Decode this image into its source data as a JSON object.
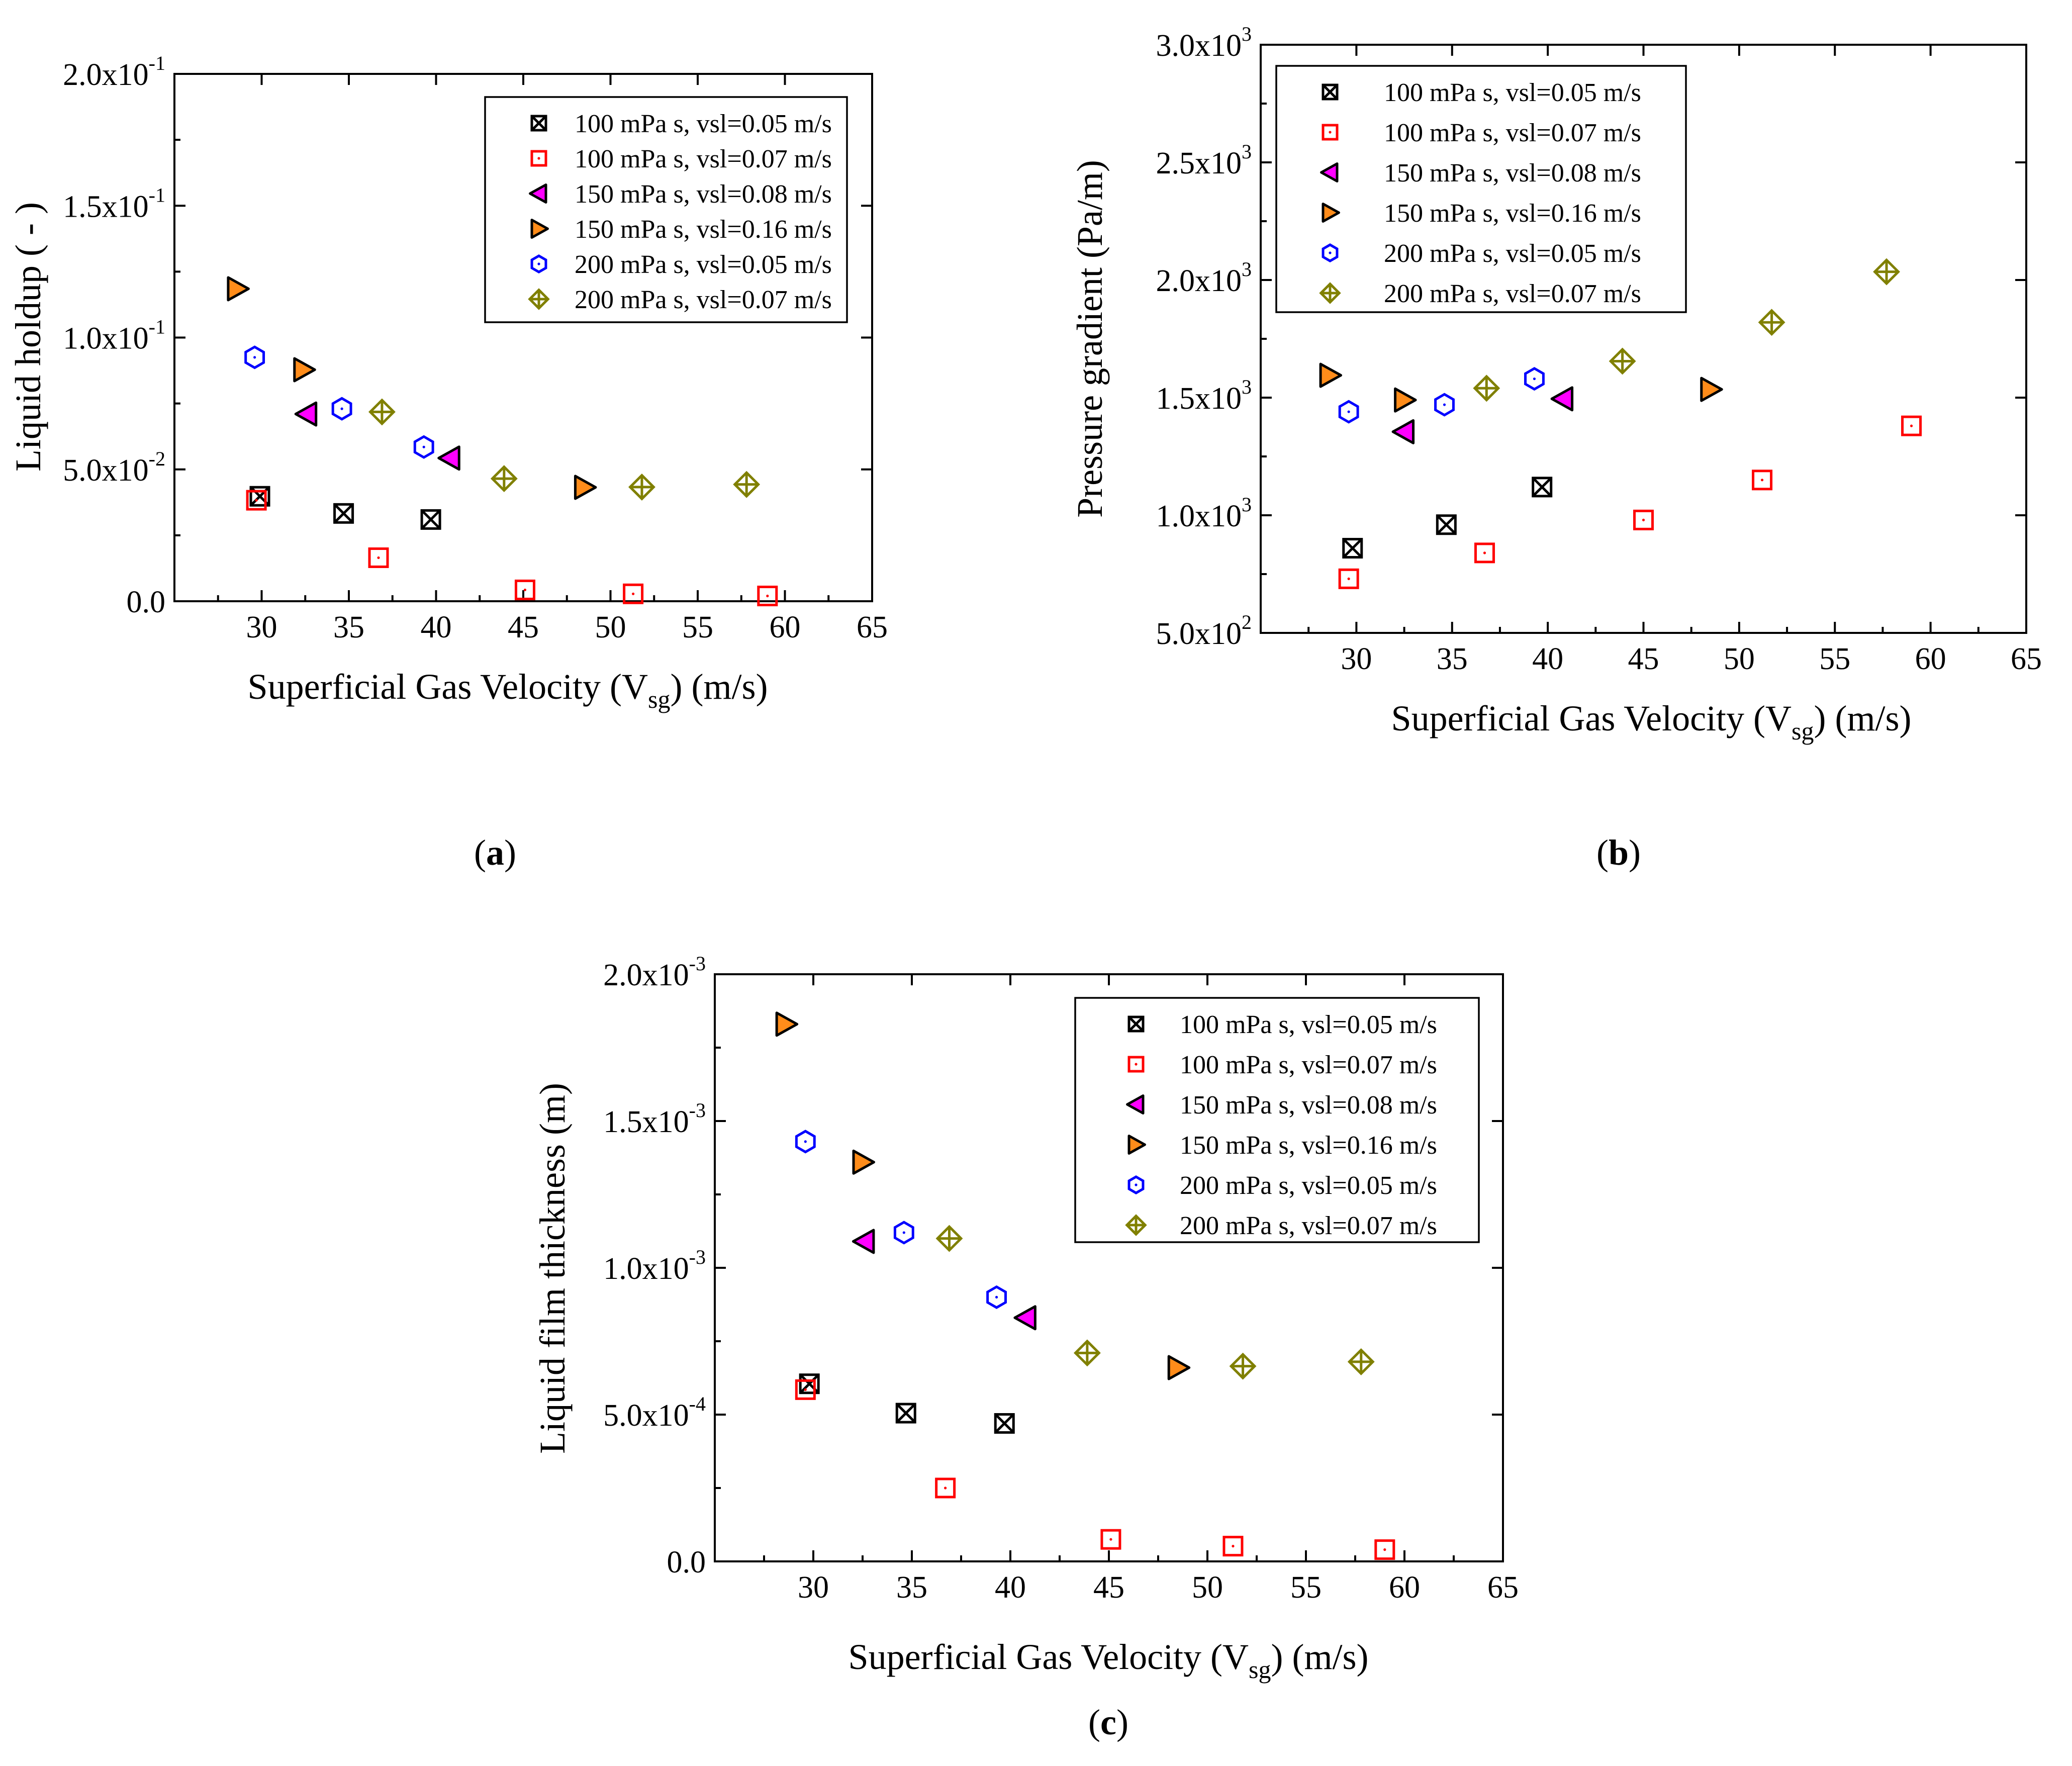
{
  "figure": {
    "panel_labels": [
      "(a)",
      "(b)",
      "(c)"
    ]
  },
  "series_styles": [
    {
      "marker": "boxed-x",
      "stroke": "#000000",
      "fill": "none"
    },
    {
      "marker": "dotted-square",
      "stroke": "#ff0000",
      "fill": "none"
    },
    {
      "marker": "left-triangle",
      "stroke": "#000000",
      "fill": "#ff00ff"
    },
    {
      "marker": "right-triangle",
      "stroke": "#000000",
      "fill": "#ff8c1a"
    },
    {
      "marker": "hexagon",
      "stroke": "#0000ff",
      "fill": "none"
    },
    {
      "marker": "circled-plus-diamond",
      "stroke": "#808000",
      "fill": "none"
    }
  ],
  "chart_data": [
    {
      "id": "a",
      "type": "scatter",
      "panel_label": "(a)",
      "title": "",
      "xlabel": "Superficial Gas Velocity (V",
      "xlabel_sub": "sg",
      "xlabel_suffix": ") (m/s)",
      "ylabel": "Liquid holdup ( - )",
      "xlim": [
        25,
        65
      ],
      "ylim": [
        0,
        0.2
      ],
      "xticks": [
        30,
        35,
        40,
        45,
        50,
        55,
        60,
        65
      ],
      "yticks": [
        {
          "value": 0,
          "mant": "0.0",
          "exp": ""
        },
        {
          "value": 0.05,
          "mant": "5.0x10",
          "exp": "-2"
        },
        {
          "value": 0.1,
          "mant": "1.0x10",
          "exp": "-1"
        },
        {
          "value": 0.15,
          "mant": "1.5x10",
          "exp": "-1"
        },
        {
          "value": 0.2,
          "mant": "2.0x10",
          "exp": "-1"
        }
      ],
      "legend_position": "top-right",
      "grid": false,
      "series": [
        {
          "name": "100 mPa s, vsl=0.05 m/s",
          "x": [
            29.9,
            34.7,
            39.7
          ],
          "y": [
            0.0398,
            0.0333,
            0.031
          ]
        },
        {
          "name": "100 mPa s, vsl=0.07 m/s",
          "x": [
            29.7,
            36.7,
            45.1,
            51.3,
            59.0
          ],
          "y": [
            0.0383,
            0.0165,
            0.0043,
            0.0028,
            0.002
          ]
        },
        {
          "name": "150 mPa s, vsl=0.08 m/s",
          "x": [
            32.6,
            40.8
          ],
          "y": [
            0.071,
            0.0543
          ]
        },
        {
          "name": "150 mPa s, vsl=0.16 m/s",
          "x": [
            28.6,
            32.4,
            48.5
          ],
          "y": [
            0.1185,
            0.0878,
            0.0432
          ]
        },
        {
          "name": "200 mPa s, vsl=0.05 m/s",
          "x": [
            29.6,
            34.6,
            39.3
          ],
          "y": [
            0.0925,
            0.073,
            0.0585
          ]
        },
        {
          "name": "200 mPa s, vsl=0.07 m/s",
          "x": [
            36.9,
            43.9,
            51.8,
            57.8
          ],
          "y": [
            0.0718,
            0.0465,
            0.0433,
            0.0443
          ]
        }
      ]
    },
    {
      "id": "b",
      "type": "scatter",
      "panel_label": "(b)",
      "title": "",
      "xlabel": "Superficial Gas Velocity (V",
      "xlabel_sub": "sg",
      "xlabel_suffix": ") (m/s)",
      "ylabel": "Pressure gradient (Pa/m)",
      "xlim": [
        25,
        65
      ],
      "ylim": [
        500,
        3000
      ],
      "xticks": [
        30,
        35,
        40,
        45,
        50,
        55,
        60,
        65
      ],
      "yticks": [
        {
          "value": 500,
          "mant": "5.0x10",
          "exp": "2"
        },
        {
          "value": 1000,
          "mant": "1.0x10",
          "exp": "3"
        },
        {
          "value": 1500,
          "mant": "1.5x10",
          "exp": "3"
        },
        {
          "value": 2000,
          "mant": "2.0x10",
          "exp": "3"
        },
        {
          "value": 2500,
          "mant": "2.5x10",
          "exp": "3"
        },
        {
          "value": 3000,
          "mant": "3.0x10",
          "exp": "3"
        }
      ],
      "legend_position": "top-left",
      "grid": false,
      "series": [
        {
          "name": "100 mPa s, vsl=0.05 m/s",
          "x": [
            29.8,
            34.7,
            39.7
          ],
          "y": [
            860,
            960,
            1120
          ]
        },
        {
          "name": "100 mPa s, vsl=0.07 m/s",
          "x": [
            29.6,
            36.7,
            45.0,
            51.2,
            59.0
          ],
          "y": [
            730,
            840,
            980,
            1150,
            1380
          ]
        },
        {
          "name": "150 mPa s, vsl=0.08 m/s",
          "x": [
            32.5,
            40.8
          ],
          "y": [
            1355,
            1495
          ]
        },
        {
          "name": "150 mPa s, vsl=0.16 m/s",
          "x": [
            28.6,
            32.5,
            48.5
          ],
          "y": [
            1595,
            1490,
            1535
          ]
        },
        {
          "name": "200 mPa s, vsl=0.05 m/s",
          "x": [
            29.6,
            34.6,
            39.3
          ],
          "y": [
            1440,
            1470,
            1580
          ]
        },
        {
          "name": "200 mPa s, vsl=0.07 m/s",
          "x": [
            36.8,
            43.9,
            51.7,
            57.7
          ],
          "y": [
            1540,
            1655,
            1820,
            2035
          ]
        }
      ]
    },
    {
      "id": "c",
      "type": "scatter",
      "panel_label": "(c)",
      "title": "",
      "xlabel": "Superficial Gas Velocity (V",
      "xlabel_sub": "sg",
      "xlabel_suffix": ") (m/s)",
      "ylabel": "Liquid film thickness (m)",
      "xlim": [
        25,
        65
      ],
      "ylim": [
        0,
        0.002
      ],
      "xticks": [
        30,
        35,
        40,
        45,
        50,
        55,
        60,
        65
      ],
      "yticks": [
        {
          "value": 0,
          "mant": "0.0",
          "exp": ""
        },
        {
          "value": 0.0005,
          "mant": "5.0x10",
          "exp": "-4"
        },
        {
          "value": 0.001,
          "mant": "1.0x10",
          "exp": "-3"
        },
        {
          "value": 0.0015,
          "mant": "1.5x10",
          "exp": "-3"
        },
        {
          "value": 0.002,
          "mant": "2.0x10",
          "exp": "-3"
        }
      ],
      "legend_position": "top-right",
      "grid": false,
      "series": [
        {
          "name": "100 mPa s, vsl=0.05 m/s",
          "x": [
            29.8,
            34.7,
            39.7
          ],
          "y": [
            0.000605,
            0.000505,
            0.00047
          ]
        },
        {
          "name": "100 mPa s, vsl=0.07 m/s",
          "x": [
            29.6,
            36.7,
            45.1,
            51.3,
            59.0
          ],
          "y": [
            0.000585,
            0.00025,
            7.5e-05,
            5.2e-05,
            4e-05
          ]
        },
        {
          "name": "150 mPa s, vsl=0.08 m/s",
          "x": [
            32.6,
            40.8
          ],
          "y": [
            0.00109,
            0.00083
          ]
        },
        {
          "name": "150 mPa s, vsl=0.16 m/s",
          "x": [
            28.6,
            32.5,
            48.5
          ],
          "y": [
            0.00183,
            0.00136,
            0.00066
          ]
        },
        {
          "name": "200 mPa s, vsl=0.05 m/s",
          "x": [
            29.6,
            34.6,
            39.3
          ],
          "y": [
            0.00143,
            0.00112,
            0.0009
          ]
        },
        {
          "name": "200 mPa s, vsl=0.07 m/s",
          "x": [
            36.9,
            43.9,
            51.8,
            57.8
          ],
          "y": [
            0.0011,
            0.00071,
            0.000665,
            0.00068
          ]
        }
      ]
    }
  ]
}
